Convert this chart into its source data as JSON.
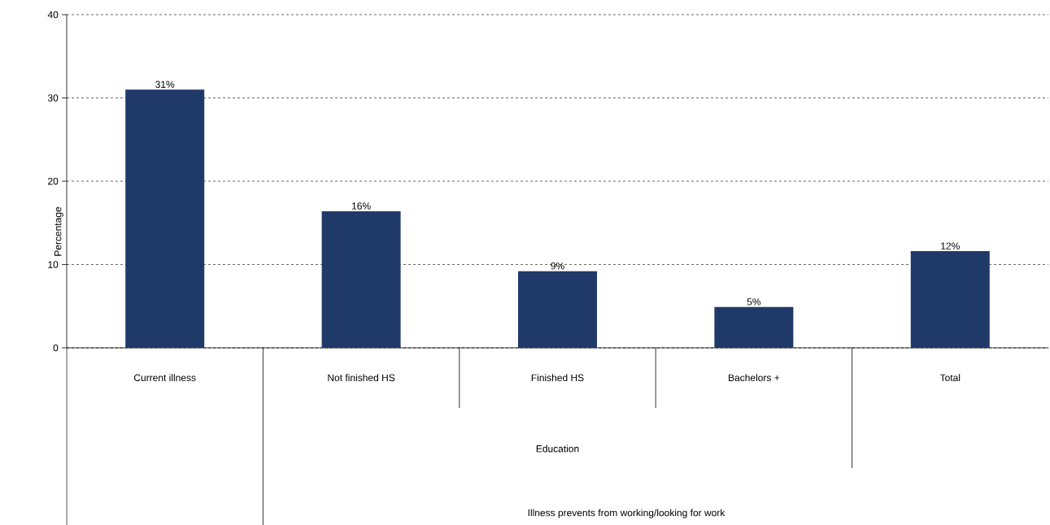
{
  "chart_data": {
    "type": "bar",
    "ylabel": "Percentage",
    "categories": [
      "Current illness",
      "Not finished HS",
      "Finished HS",
      "Bachelors +",
      "Total"
    ],
    "values": [
      31,
      16.4,
      9.2,
      4.9,
      11.6
    ],
    "value_labels": [
      "31%",
      "16%",
      "9%",
      "5%",
      "12%"
    ],
    "color": "#1f3a68",
    "ylim": [
      0,
      40
    ],
    "yticks": [
      0,
      10,
      20,
      30,
      40
    ],
    "grid": "y",
    "annotations": [
      "Education",
      "Illness prevents from working/looking for work"
    ]
  }
}
